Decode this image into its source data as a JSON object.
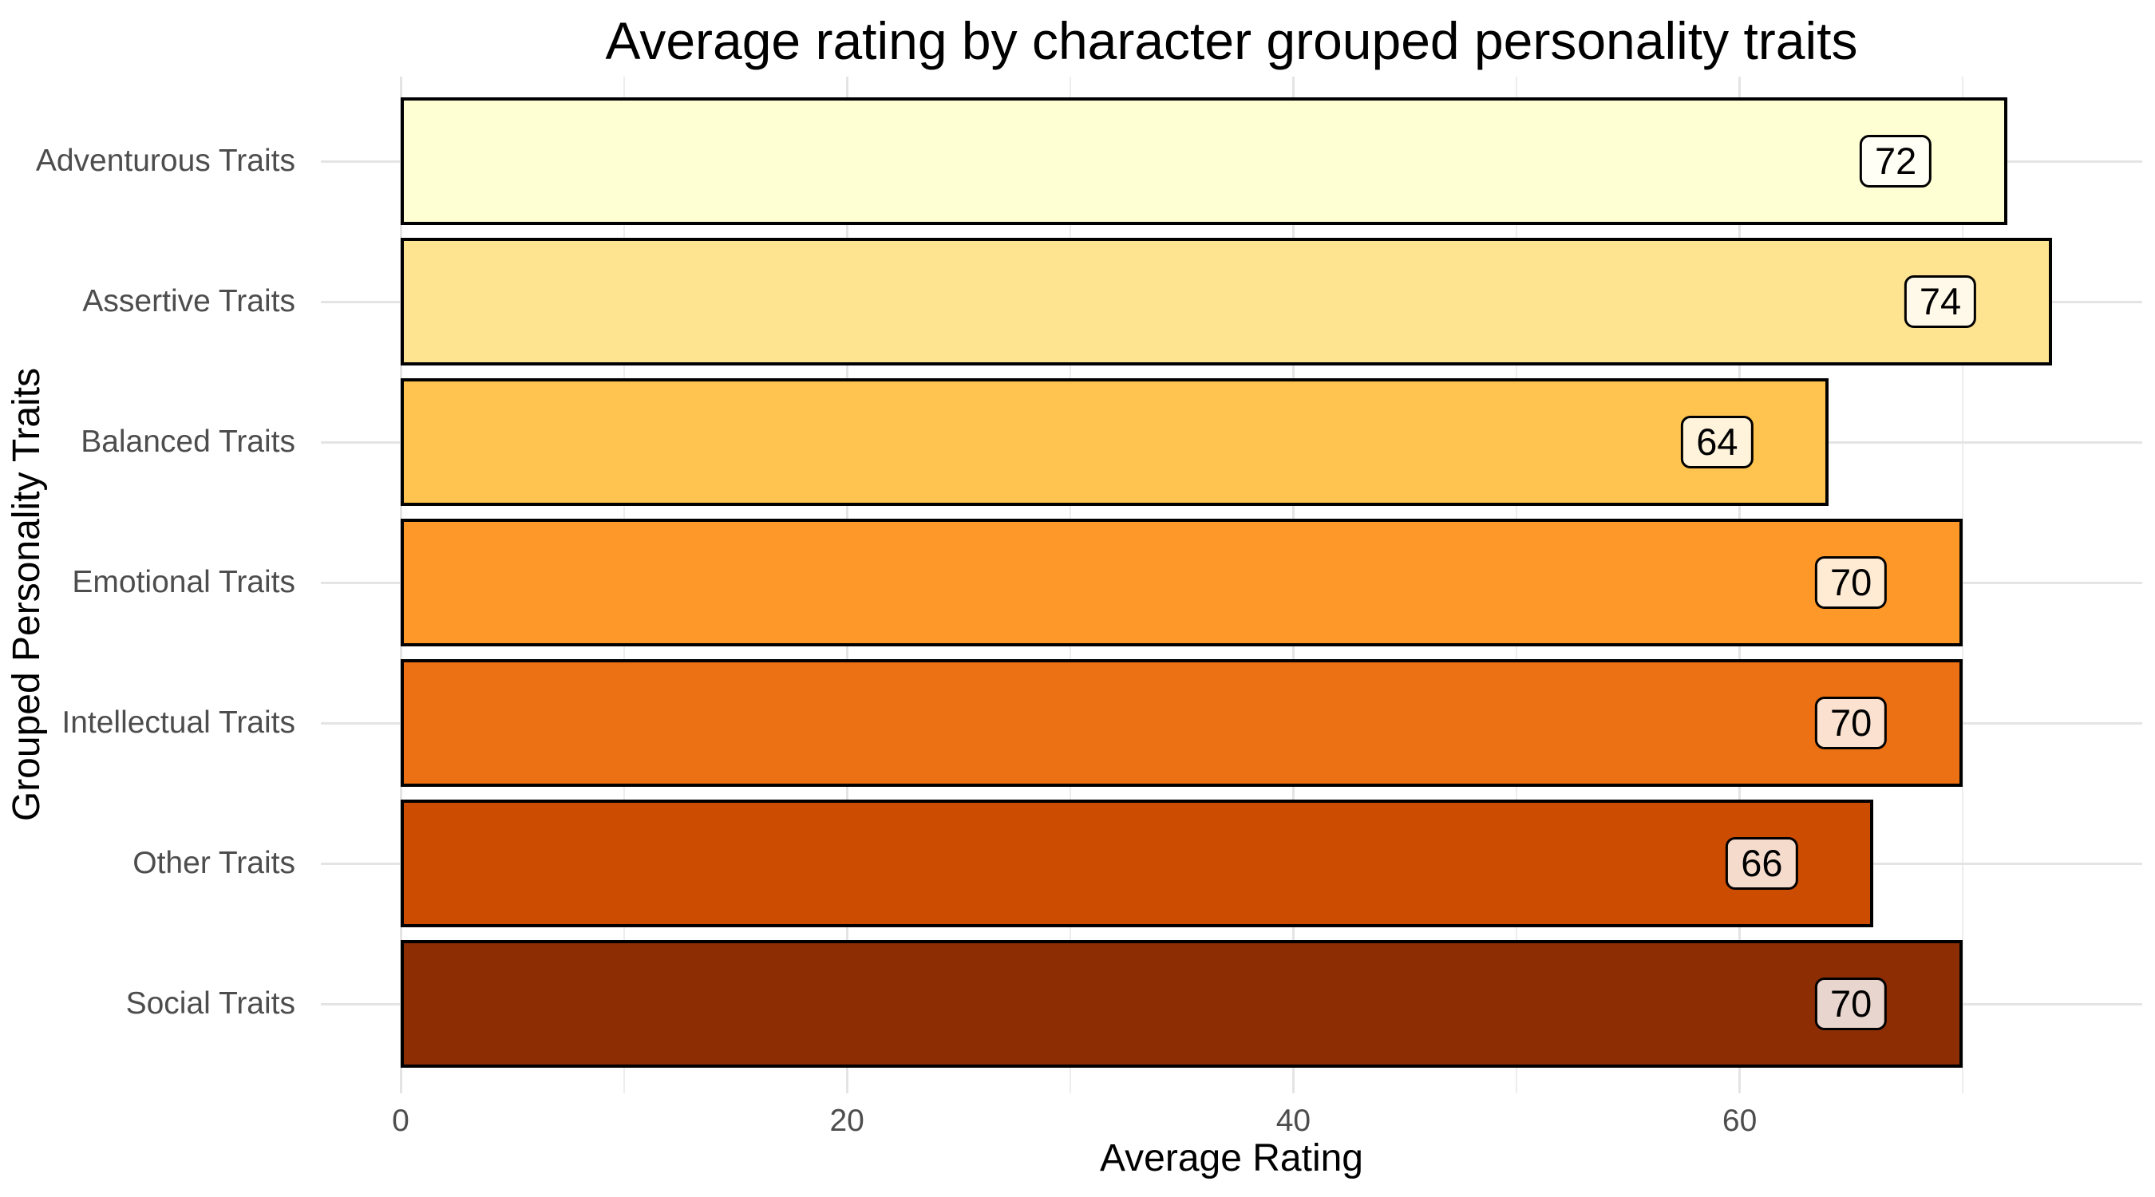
{
  "page": {
    "background": "#FFFFFF"
  },
  "chart_data": {
    "type": "bar",
    "orientation": "horizontal",
    "title": "Average rating by character grouped personality traits",
    "xlabel": "Average Rating",
    "ylabel": "Grouped Personality Traits",
    "categories": [
      "Adventurous Traits",
      "Assertive Traits",
      "Balanced Traits",
      "Emotional Traits",
      "Intellectual Traits",
      "Other Traits",
      "Social Traits"
    ],
    "values": [
      72,
      74,
      64,
      70,
      70,
      66,
      70
    ],
    "bar_colors": [
      "#FFFFD4",
      "#FEE391",
      "#FEC44F",
      "#FE9929",
      "#EC7014",
      "#CC4C02",
      "#8C2D04"
    ],
    "bar_border_color": "#000000",
    "x_ticks": [
      0,
      20,
      40,
      60
    ],
    "x_minor_gridlines": [
      10,
      30,
      50,
      70
    ],
    "xlim": [
      0,
      78
    ],
    "grid": true,
    "legend": false,
    "axis_text_color": "#4D4D4D",
    "title_color": "#000000",
    "major_grid_color": "#E4E4E4",
    "minor_grid_color": "#EDEDED",
    "value_label_fill": "rgba(255,255,255,0.8)"
  }
}
